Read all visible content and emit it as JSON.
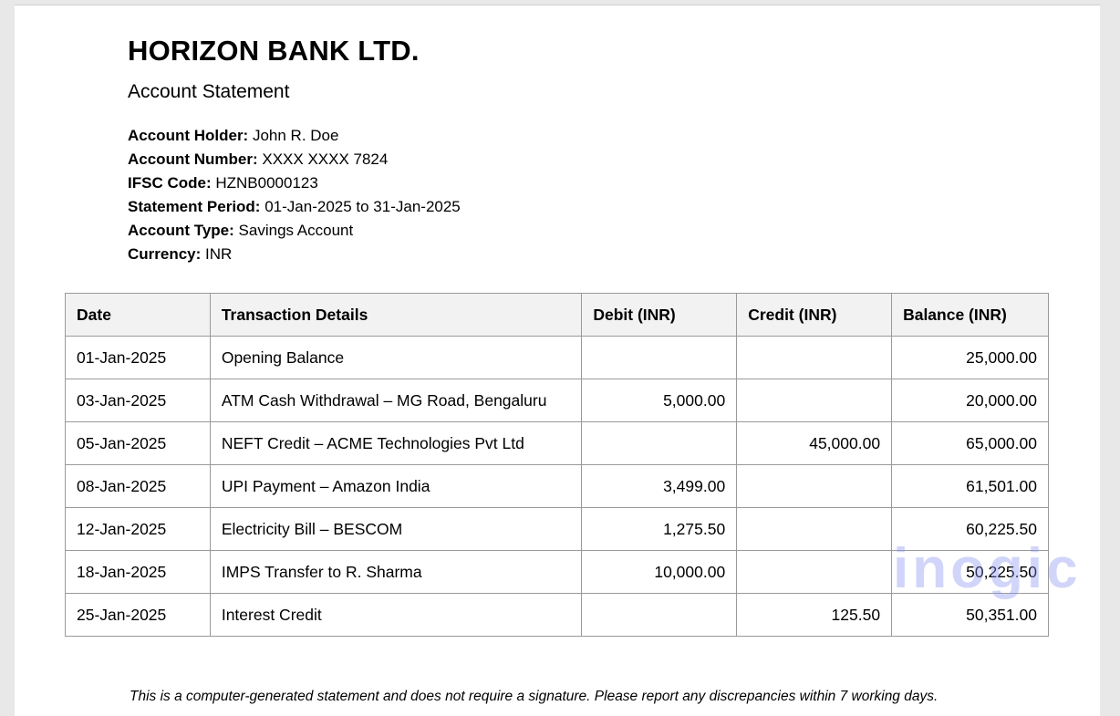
{
  "bank_name": "HORIZON BANK LTD.",
  "document_title": "Account Statement",
  "account_info": [
    {
      "label": "Account Holder:",
      "value": "John R. Doe"
    },
    {
      "label": "Account Number:",
      "value": "XXXX XXXX 7824"
    },
    {
      "label": "IFSC Code:",
      "value": "HZNB0000123"
    },
    {
      "label": "Statement Period:",
      "value": "01-Jan-2025 to 31-Jan-2025"
    },
    {
      "label": "Account Type:",
      "value": "Savings Account"
    },
    {
      "label": "Currency:",
      "value": "INR"
    }
  ],
  "table": {
    "headers": [
      "Date",
      "Transaction Details",
      "Debit (INR)",
      "Credit (INR)",
      "Balance (INR)"
    ],
    "rows": [
      [
        "01-Jan-2025",
        "Opening Balance",
        "",
        "",
        "25,000.00"
      ],
      [
        "03-Jan-2025",
        "ATM Cash Withdrawal – MG Road, Bengaluru",
        "5,000.00",
        "",
        "20,000.00"
      ],
      [
        "05-Jan-2025",
        "NEFT Credit – ACME Technologies Pvt Ltd",
        "",
        "45,000.00",
        "65,000.00"
      ],
      [
        "08-Jan-2025",
        "UPI Payment – Amazon India",
        "3,499.00",
        "",
        "61,501.00"
      ],
      [
        "12-Jan-2025",
        "Electricity Bill – BESCOM",
        "1,275.50",
        "",
        "60,225.50"
      ],
      [
        "18-Jan-2025",
        "IMPS Transfer to R. Sharma",
        "10,000.00",
        "",
        "50,225.50"
      ],
      [
        "25-Jan-2025",
        "Interest Credit",
        "",
        "125.50",
        "50,351.00"
      ]
    ]
  },
  "footer_note": "This is a computer-generated statement and does not require a signature. Please report any discrepancies within 7 working days.",
  "watermark": "inogic"
}
